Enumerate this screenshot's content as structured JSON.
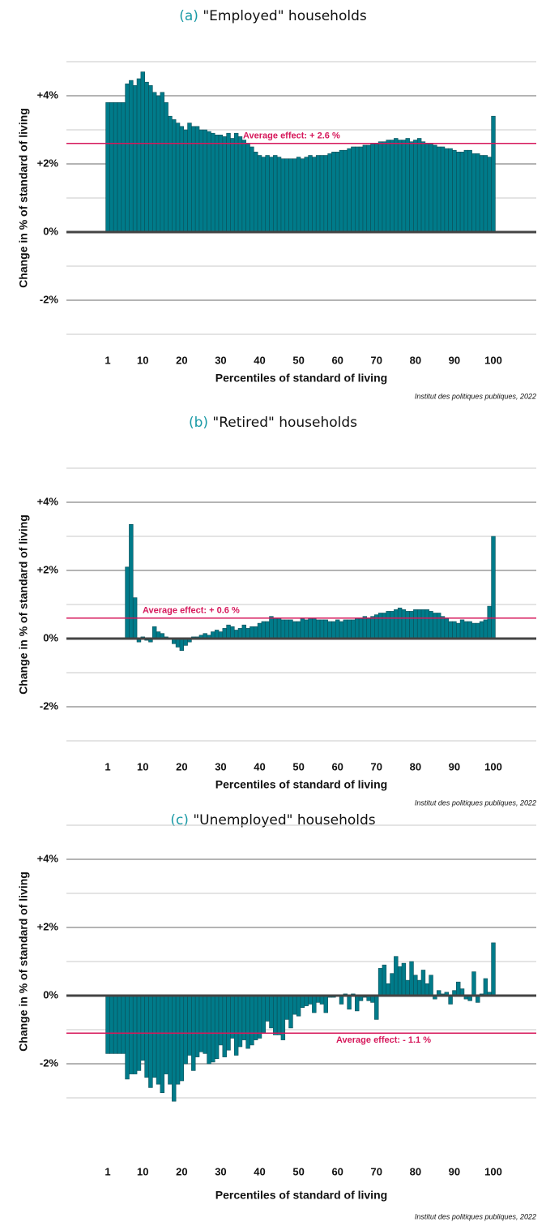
{
  "chart_data": [
    {
      "type": "bar",
      "label": "(a)",
      "title": "\"Employed\" households",
      "ylabel": "Change in % of standard of living",
      "xlabel": "Percentiles of standard of living",
      "source": "Institut des politiques publiques, 2022",
      "color": "#007b8a",
      "label_color": "#1a9aa6",
      "average": {
        "value": 2.6,
        "label": "Average effect: + 2.6 %",
        "color": "#d6185b"
      },
      "xlim": [
        0,
        101
      ],
      "xticks": [
        1,
        10,
        20,
        30,
        40,
        50,
        60,
        70,
        80,
        90,
        100
      ],
      "ylim": [
        -3.4,
        5.4
      ],
      "yticks": [
        {
          "value": 4,
          "label": "+4%"
        },
        {
          "value": 2,
          "label": "+2%"
        },
        {
          "value": 0,
          "label": "0%"
        },
        {
          "value": -2,
          "label": "-2%"
        }
      ],
      "minor_grid": [
        5,
        3,
        1,
        -1,
        -3
      ],
      "grid": true,
      "x": [
        1,
        2,
        3,
        4,
        5,
        6,
        7,
        8,
        9,
        10,
        11,
        12,
        13,
        14,
        15,
        16,
        17,
        18,
        19,
        20,
        21,
        22,
        23,
        24,
        25,
        26,
        27,
        28,
        29,
        30,
        31,
        32,
        33,
        34,
        35,
        36,
        37,
        38,
        39,
        40,
        41,
        42,
        43,
        44,
        45,
        46,
        47,
        48,
        49,
        50,
        51,
        52,
        53,
        54,
        55,
        56,
        57,
        58,
        59,
        60,
        61,
        62,
        63,
        64,
        65,
        66,
        67,
        68,
        69,
        70,
        71,
        72,
        73,
        74,
        75,
        76,
        77,
        78,
        79,
        80,
        81,
        82,
        83,
        84,
        85,
        86,
        87,
        88,
        89,
        90,
        91,
        92,
        93,
        94,
        95,
        96,
        97,
        98,
        99,
        100
      ],
      "values": [
        3.8,
        3.8,
        3.8,
        3.8,
        3.8,
        4.35,
        4.45,
        4.3,
        4.5,
        4.7,
        4.4,
        4.3,
        4.1,
        4.0,
        4.1,
        3.8,
        3.4,
        3.3,
        3.2,
        3.1,
        3.0,
        3.2,
        3.1,
        3.1,
        3.0,
        3.0,
        2.95,
        2.9,
        2.85,
        2.85,
        2.8,
        2.9,
        2.75,
        2.9,
        2.8,
        2.7,
        2.6,
        2.5,
        2.35,
        2.25,
        2.2,
        2.25,
        2.2,
        2.25,
        2.2,
        2.15,
        2.15,
        2.15,
        2.15,
        2.2,
        2.15,
        2.2,
        2.25,
        2.2,
        2.25,
        2.25,
        2.25,
        2.3,
        2.35,
        2.35,
        2.4,
        2.4,
        2.45,
        2.5,
        2.5,
        2.5,
        2.55,
        2.55,
        2.6,
        2.6,
        2.65,
        2.65,
        2.7,
        2.7,
        2.75,
        2.7,
        2.7,
        2.75,
        2.65,
        2.7,
        2.75,
        2.65,
        2.6,
        2.6,
        2.55,
        2.5,
        2.5,
        2.45,
        2.45,
        2.4,
        2.35,
        2.35,
        2.4,
        2.4,
        2.3,
        2.3,
        2.25,
        2.25,
        2.2,
        3.4
      ]
    },
    {
      "type": "bar",
      "label": "(b)",
      "title": "\"Retired\" households",
      "ylabel": "Change in % of standard of living",
      "xlabel": "Percentiles of standard of living",
      "source": "Institut des politiques publiques, 2022",
      "color": "#007b8a",
      "label_color": "#1a9aa6",
      "average": {
        "value": 0.6,
        "label": "Average effect: + 0.6 %",
        "color": "#d6185b"
      },
      "xlim": [
        0,
        101
      ],
      "xticks": [
        1,
        10,
        20,
        30,
        40,
        50,
        60,
        70,
        80,
        90,
        100
      ],
      "ylim": [
        -3.4,
        5.4
      ],
      "yticks": [
        {
          "value": 4,
          "label": "+4%"
        },
        {
          "value": 2,
          "label": "+2%"
        },
        {
          "value": 0,
          "label": "0%"
        },
        {
          "value": -2,
          "label": "-2%"
        }
      ],
      "minor_grid": [
        5,
        3,
        1,
        -1,
        -3
      ],
      "grid": true,
      "x": [
        1,
        2,
        3,
        4,
        5,
        6,
        7,
        8,
        9,
        10,
        11,
        12,
        13,
        14,
        15,
        16,
        17,
        18,
        19,
        20,
        21,
        22,
        23,
        24,
        25,
        26,
        27,
        28,
        29,
        30,
        31,
        32,
        33,
        34,
        35,
        36,
        37,
        38,
        39,
        40,
        41,
        42,
        43,
        44,
        45,
        46,
        47,
        48,
        49,
        50,
        51,
        52,
        53,
        54,
        55,
        56,
        57,
        58,
        59,
        60,
        61,
        62,
        63,
        64,
        65,
        66,
        67,
        68,
        69,
        70,
        71,
        72,
        73,
        74,
        75,
        76,
        77,
        78,
        79,
        80,
        81,
        82,
        83,
        84,
        85,
        86,
        87,
        88,
        89,
        90,
        91,
        92,
        93,
        94,
        95,
        96,
        97,
        98,
        99,
        100
      ],
      "values": [
        0.02,
        0.02,
        0.02,
        0.02,
        0.02,
        2.1,
        3.35,
        1.2,
        -0.1,
        0.05,
        -0.05,
        -0.1,
        0.35,
        0.2,
        0.15,
        0.05,
        0.02,
        -0.15,
        -0.25,
        -0.35,
        -0.2,
        -0.1,
        0.05,
        0.05,
        0.1,
        0.15,
        0.1,
        0.2,
        0.25,
        0.2,
        0.3,
        0.4,
        0.35,
        0.25,
        0.3,
        0.4,
        0.3,
        0.35,
        0.35,
        0.45,
        0.5,
        0.5,
        0.65,
        0.6,
        0.6,
        0.55,
        0.55,
        0.55,
        0.5,
        0.5,
        0.6,
        0.55,
        0.6,
        0.6,
        0.55,
        0.55,
        0.55,
        0.5,
        0.5,
        0.55,
        0.5,
        0.55,
        0.55,
        0.55,
        0.6,
        0.6,
        0.65,
        0.6,
        0.65,
        0.7,
        0.75,
        0.75,
        0.8,
        0.8,
        0.85,
        0.9,
        0.85,
        0.8,
        0.8,
        0.85,
        0.85,
        0.85,
        0.85,
        0.8,
        0.75,
        0.75,
        0.65,
        0.6,
        0.5,
        0.5,
        0.45,
        0.55,
        0.5,
        0.5,
        0.45,
        0.45,
        0.5,
        0.55,
        0.95,
        3.0
      ]
    },
    {
      "type": "bar",
      "label": "(c)",
      "title": "\"Unemployed\" households",
      "ylabel": "Change in % of standard of living",
      "xlabel": "Percentiles of standard of living",
      "source": "Institut des politiques publiques, 2022",
      "color": "#007b8a",
      "label_color": "#1a9aa6",
      "average": {
        "value": -1.1,
        "label": "Average effect: - 1.1 %",
        "color": "#d6185b"
      },
      "xlim": [
        0,
        101
      ],
      "xticks": [
        1,
        10,
        20,
        30,
        40,
        50,
        60,
        70,
        80,
        90,
        100
      ],
      "ylim": [
        -3.4,
        5.4
      ],
      "yticks": [
        {
          "value": 4,
          "label": "+4%"
        },
        {
          "value": 2,
          "label": "+2%"
        },
        {
          "value": 0,
          "label": "0%"
        },
        {
          "value": -2,
          "label": "-2%"
        }
      ],
      "minor_grid": [
        5,
        3,
        1,
        -1,
        -3
      ],
      "grid": true,
      "x": [
        1,
        2,
        3,
        4,
        5,
        6,
        7,
        8,
        9,
        10,
        11,
        12,
        13,
        14,
        15,
        16,
        17,
        18,
        19,
        20,
        21,
        22,
        23,
        24,
        25,
        26,
        27,
        28,
        29,
        30,
        31,
        32,
        33,
        34,
        35,
        36,
        37,
        38,
        39,
        40,
        41,
        42,
        43,
        44,
        45,
        46,
        47,
        48,
        49,
        50,
        51,
        52,
        53,
        54,
        55,
        56,
        57,
        58,
        59,
        60,
        61,
        62,
        63,
        64,
        65,
        66,
        67,
        68,
        69,
        70,
        71,
        72,
        73,
        74,
        75,
        76,
        77,
        78,
        79,
        80,
        81,
        82,
        83,
        84,
        85,
        86,
        87,
        88,
        89,
        90,
        91,
        92,
        93,
        94,
        95,
        96,
        97,
        98,
        99,
        100
      ],
      "values": [
        -1.7,
        -1.7,
        -1.7,
        -1.7,
        -1.7,
        -2.45,
        -2.3,
        -2.3,
        -2.2,
        -1.9,
        -2.4,
        -2.7,
        -2.4,
        -2.6,
        -2.85,
        -2.3,
        -2.6,
        -3.1,
        -2.6,
        -2.5,
        -2.0,
        -1.75,
        -2.2,
        -1.8,
        -1.65,
        -1.7,
        -2.0,
        -1.95,
        -1.85,
        -1.45,
        -1.8,
        -1.6,
        -1.25,
        -1.75,
        -1.5,
        -1.3,
        -1.55,
        -1.45,
        -1.3,
        -1.25,
        -1.1,
        -0.75,
        -0.95,
        -1.15,
        -1.15,
        -1.3,
        -0.7,
        -0.95,
        -0.55,
        -0.6,
        -0.35,
        -0.3,
        -0.25,
        -0.5,
        -0.2,
        -0.25,
        -0.5,
        -0.05,
        -0.05,
        0.02,
        -0.25,
        0.05,
        -0.4,
        0.05,
        -0.45,
        -0.15,
        -0.05,
        -0.15,
        -0.2,
        -0.7,
        0.8,
        0.9,
        0.35,
        0.65,
        1.15,
        0.85,
        0.95,
        0.45,
        1.0,
        0.6,
        0.45,
        0.75,
        0.35,
        0.6,
        -0.1,
        0.15,
        0.05,
        0.1,
        -0.25,
        0.15,
        0.4,
        0.2,
        -0.1,
        -0.15,
        0.7,
        -0.2,
        0.05,
        0.5,
        0.1,
        1.55
      ]
    }
  ]
}
